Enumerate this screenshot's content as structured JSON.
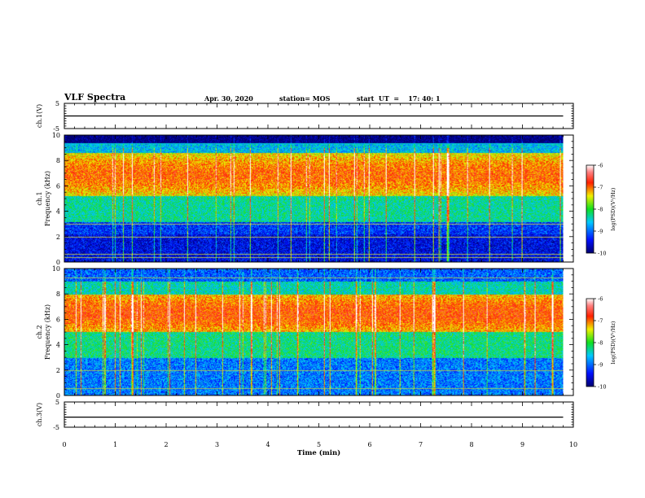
{
  "header": {
    "title": "VLF Spectra",
    "date": "Apr. 30, 2020",
    "station": "station= MOS",
    "start_ut": "start  UT  =    17: 40: 1"
  },
  "chart_data": [
    {
      "type": "line",
      "ylabel": "ch.1(V)",
      "ylim": [
        -5,
        5
      ],
      "yticks": [
        "5",
        "-5"
      ],
      "series": [
        {
          "values": [
            0,
            0
          ]
        }
      ]
    },
    {
      "type": "heatmap",
      "channel_label": "ch.1",
      "ylabel": "Frequency  (kHz)",
      "ylim": [
        0,
        10
      ],
      "yticks": [
        "0",
        "2",
        "4",
        "6",
        "8",
        "10"
      ],
      "colorbar": {
        "label": "log(PSD)(V²/Hz)",
        "ticks": [
          "-6",
          "-7",
          "-8",
          "-9",
          "-10"
        ],
        "range": [
          -10,
          -6
        ]
      }
    },
    {
      "type": "heatmap",
      "channel_label": "ch.2",
      "ylabel": "Frequency  (kHz)",
      "ylim": [
        0,
        10
      ],
      "yticks": [
        "0",
        "2",
        "4",
        "6",
        "8",
        "10"
      ],
      "colorbar": {
        "label": "log(PSD)(V²/Hz)",
        "ticks": [
          "-6",
          "-7",
          "-8",
          "-9",
          "-10"
        ],
        "range": [
          -10,
          -6
        ]
      }
    },
    {
      "type": "line",
      "ylabel": "ch.3(V)",
      "ylim": [
        -5,
        5
      ],
      "yticks": [
        "5",
        "-5"
      ],
      "series": [
        {
          "values": [
            -1,
            -1
          ]
        }
      ]
    }
  ],
  "x_axis": {
    "label": "Time  (min)",
    "ticks": [
      "0",
      "1",
      "2",
      "3",
      "4",
      "5",
      "6",
      "7",
      "8",
      "9",
      "10"
    ],
    "range": [
      0,
      9.8
    ]
  }
}
